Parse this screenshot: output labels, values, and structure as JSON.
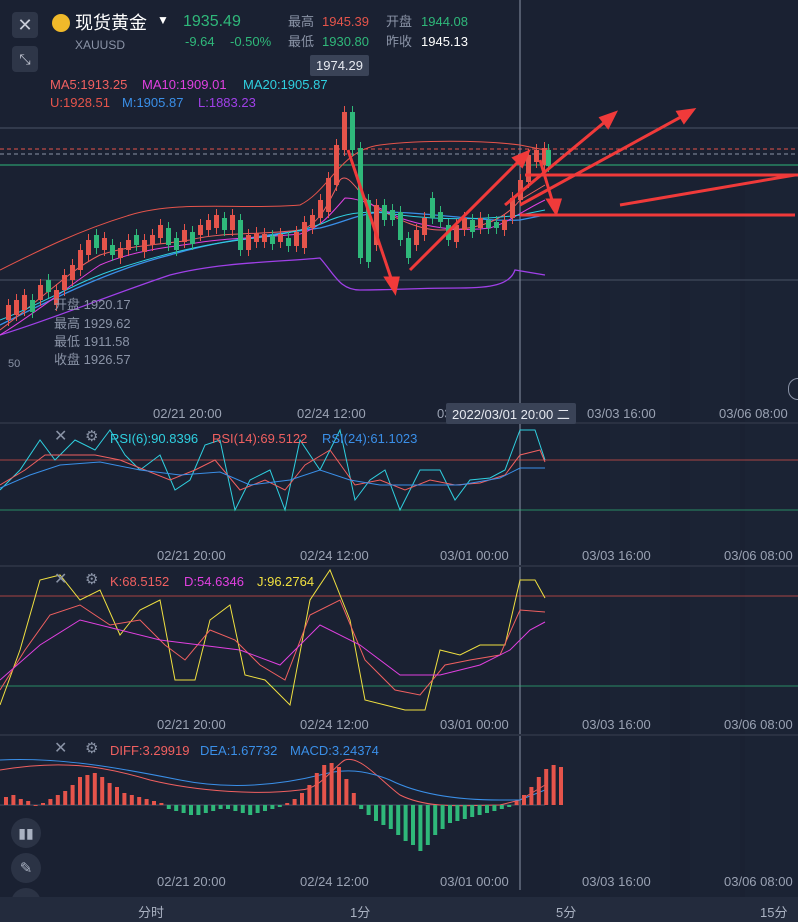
{
  "header": {
    "title": "现货黄金",
    "symbol": "XAUUSD",
    "price": "1935.49",
    "change": "-9.64",
    "change_pct": "-0.50%",
    "high_label": "最高",
    "high": "1945.39",
    "open_label": "开盘",
    "open": "1944.08",
    "low_label": "最低",
    "low": "1930.80",
    "prev_label": "昨收",
    "prev": "1945.13"
  },
  "main_chart": {
    "peak_tip": "1974.29",
    "ma5": "MA5:1913.25",
    "ma10": "MA10:1909.01",
    "ma20": "MA20:1905.87",
    "boll_u": "U:1928.51",
    "boll_m": "M:1905.87",
    "boll_l": "L:1883.23",
    "ohlc": {
      "open": "开盘 1920.17",
      "high": "最高 1929.62",
      "low": "最低 1911.58",
      "close": "收盘 1926.57"
    },
    "y_hint": "50",
    "x_labels": [
      "02/21 20:00",
      "02/24 12:00",
      "03",
      "03/03 16:00",
      "03/06 08:00"
    ],
    "crosshair_time": "2022/03/01  20:00 二"
  },
  "rsi_panel": {
    "rsi6": "RSI(6):90.8396",
    "rsi14": "RSI(14):69.5122",
    "rsi24": "RSI(24):61.1023",
    "x_labels": [
      "02/21 20:00",
      "02/24 12:00",
      "03/01 00:00",
      "03/03 16:00",
      "03/06 08:00"
    ]
  },
  "kdj_panel": {
    "k": "K:68.5152",
    "d": "D:54.6346",
    "j": "J:96.2764",
    "x_labels": [
      "02/21 20:00",
      "02/24 12:00",
      "03/01 00:00",
      "03/03 16:00",
      "03/06 08:00"
    ]
  },
  "macd_panel": {
    "diff": "DIFF:3.29919",
    "dea": "DEA:1.67732",
    "macd": "MACD:3.24374",
    "x_labels": [
      "02/21 20:00",
      "02/24 12:00",
      "03/01 00:00",
      "03/03 16:00",
      "03/06 08:00"
    ]
  },
  "bottom_bar": {
    "tabs": [
      "分时",
      "1分",
      "5分",
      "15分"
    ]
  },
  "colors": {
    "up": "#e5544b",
    "down": "#2fb87a",
    "ma5": "#f06060",
    "ma10": "#e040e0",
    "ma20": "#2fd0e0",
    "arrow": "#f03a3a"
  }
}
